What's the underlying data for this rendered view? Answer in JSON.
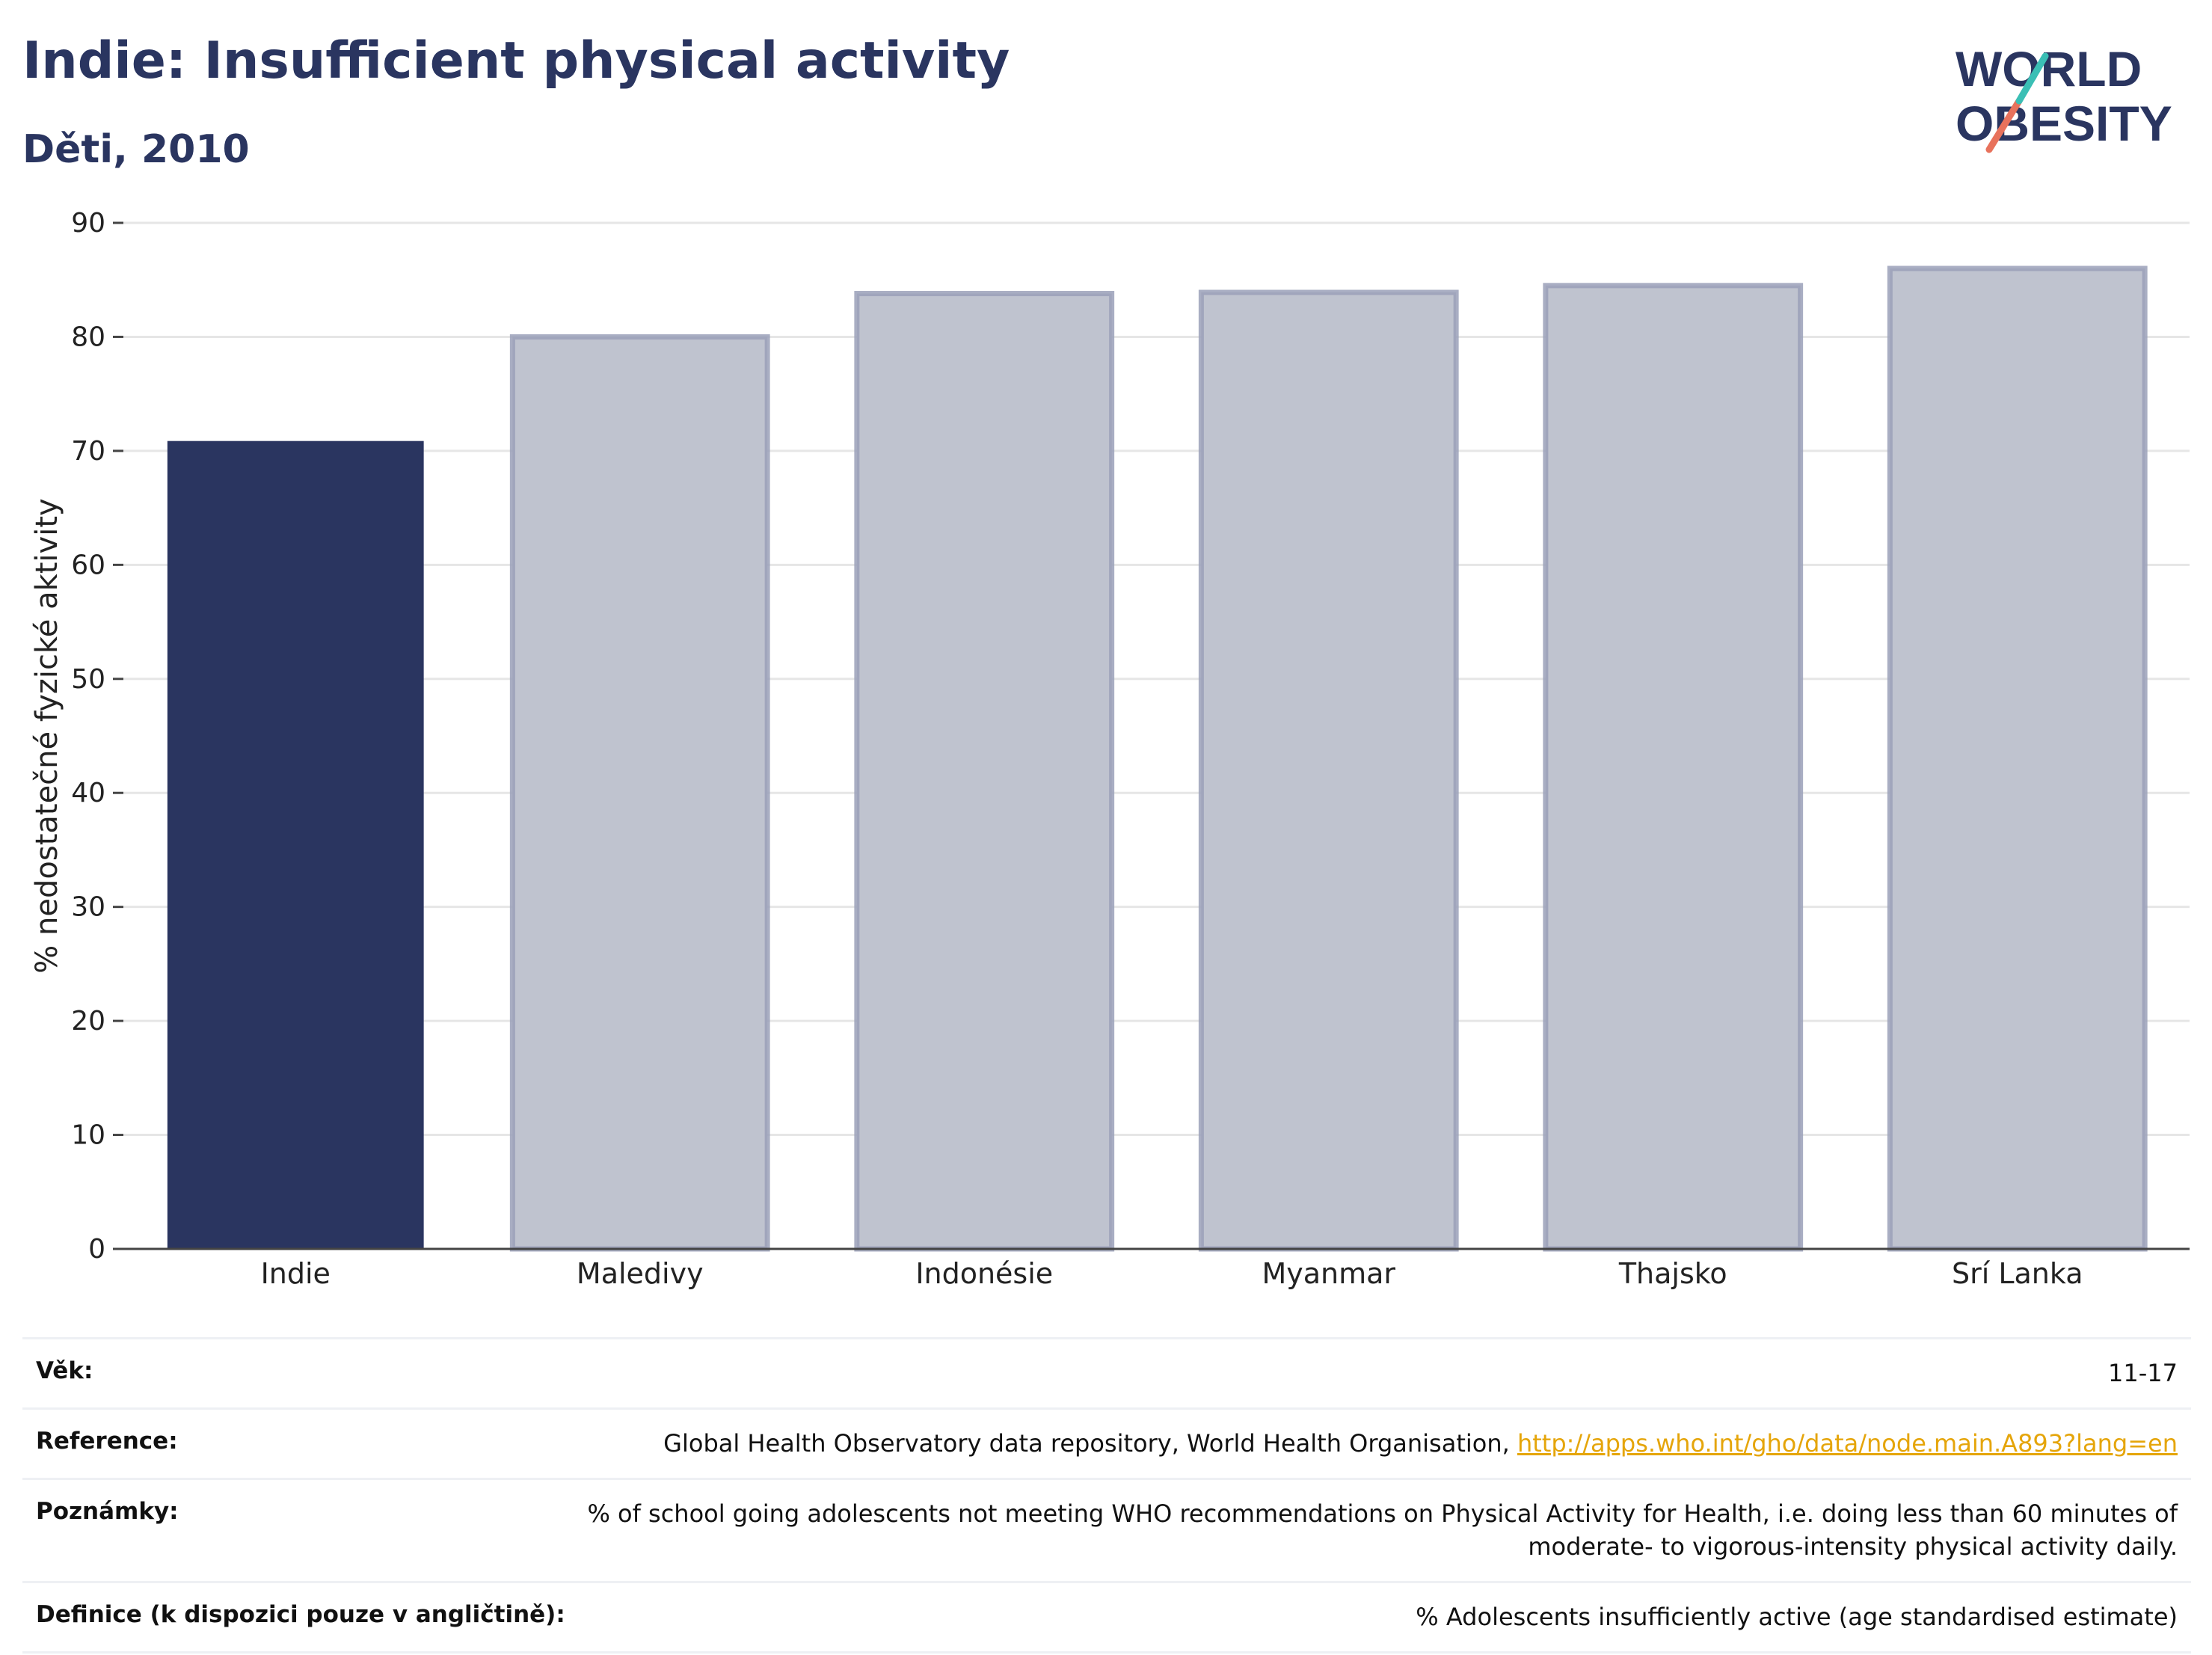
{
  "header": {
    "title": "Indie: Insufficient physical activity",
    "subtitle": "Děti, 2010"
  },
  "logo": {
    "line1": "WORLD",
    "line2": "OBESITY"
  },
  "colors": {
    "highlight": "#2a3560",
    "other": "#bfc3cf",
    "other_border": "#9aa0b8",
    "grid": "#e6e6e6",
    "link": "#e5a50a"
  },
  "chart_data": {
    "type": "bar",
    "categories": [
      "Indie",
      "Maledivy",
      "Indonésie",
      "Myanmar",
      "Thajsko",
      "Srí Lanka"
    ],
    "values": [
      70.8,
      80.0,
      83.8,
      83.9,
      84.5,
      86.0
    ],
    "highlight_index": 0,
    "ylabel": "% nedostatečné fyzické aktivity",
    "ylim": [
      0,
      90
    ],
    "yticks": [
      0,
      10,
      20,
      30,
      40,
      50,
      60,
      70,
      80,
      90
    ],
    "grid": true
  },
  "info": {
    "age_label": "Věk:",
    "age_value": "11-17",
    "reference_label": "Reference:",
    "reference_text": "Global Health Observatory data repository, World Health Organisation,",
    "reference_link": "http://apps.who.int/gho/data/node.main.A893?lang=en",
    "notes_label": "Poznámky:",
    "notes_value": "% of school going adolescents not meeting WHO recommendations on Physical Activity for Health, i.e. doing less than 60 minutes of moderate- to vigorous-intensity physical activity daily.",
    "definition_label": "Definice (k dispozici pouze v angličtině):",
    "definition_value": "% Adolescents insufficiently active (age standardised estimate)"
  }
}
